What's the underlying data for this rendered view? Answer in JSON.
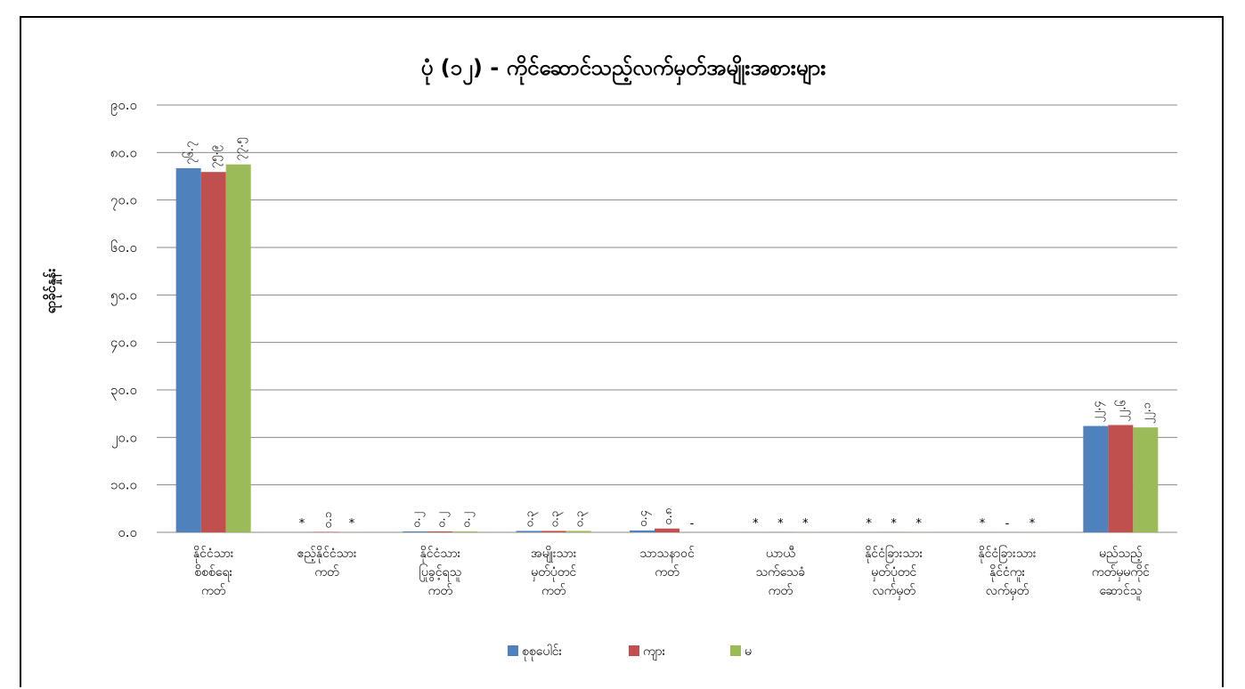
{
  "chart_data": {
    "type": "bar",
    "title": "ပုံ (၁၂) - ကိုင်ဆောင်သည့်လက်မှတ်အမျိုးအစားများ",
    "ylabel": "ရာခိုင်နှုန်း",
    "ylim": [
      0,
      90
    ],
    "yticks": [
      0,
      10,
      20,
      30,
      40,
      50,
      60,
      70,
      80,
      90
    ],
    "ytick_labels": [
      "၀.၀",
      "၁၀.၀",
      "၂၀.၀",
      "၃၀.၀",
      "၄၀.၀",
      "၅၀.၀",
      "၆၀.၀",
      "၇၀.၀",
      "၈၀.၀",
      "၉၀.၀"
    ],
    "grid": true,
    "legend_position": "bottom",
    "categories": [
      [
        "နိုင်ငံသား",
        "စိစစ်ရေး",
        "ကတ်"
      ],
      [
        "ဧည့်နိုင်ငံသား",
        "ကတ်"
      ],
      [
        "နိုင်ငံသား",
        "ပြုခွင့်ရသူ",
        "ကတ်"
      ],
      [
        "အမျိုးသား",
        "မှတ်ပုံတင်",
        "ကတ်"
      ],
      [
        "သာသနာဝင်",
        "ကတ်"
      ],
      [
        "ယာယီ",
        "သက်သေခံ",
        "ကတ်"
      ],
      [
        "နိုင်ငံခြားသား",
        "မှတ်ပုံတင်",
        "လက်မှတ်"
      ],
      [
        "နိုင်ငံခြားသား",
        "နိုင်ငံကူး",
        "လက်မှတ်"
      ],
      [
        "မည်သည့်",
        "ကတ်မှမကိုင်",
        "ဆောင်သူ"
      ]
    ],
    "series": [
      {
        "name": "စုစုပေါင်း",
        "color": "#4F81BD",
        "values": [
          76.7,
          0.03,
          0.2,
          0.3,
          0.4,
          0.03,
          0.03,
          0.03,
          22.4
        ],
        "labels": [
          "၇၆.၇",
          "*",
          "၀.၂",
          "၀.၃",
          "၀.၄",
          "*",
          "*",
          "*",
          "၂၂.၄"
        ]
      },
      {
        "name": "ကျား",
        "color": "#C0504D",
        "values": [
          75.9,
          0.1,
          0.2,
          0.3,
          0.8,
          0.03,
          0.03,
          0.0,
          22.6
        ],
        "labels": [
          "၇၅.၉",
          "၀.၁",
          "၀.၂",
          "၀.၃",
          "၀.၈",
          "*",
          "*",
          "-",
          "၂၂.၆"
        ]
      },
      {
        "name": "မ",
        "color": "#9BBB59",
        "values": [
          77.5,
          0.03,
          0.2,
          0.3,
          0.0,
          0.03,
          0.03,
          0.03,
          22.1
        ],
        "labels": [
          "၇၇.၅",
          "*",
          "၀.၂",
          "၀.၃",
          "-",
          "*",
          "*",
          "*",
          "၂၂.၁"
        ]
      }
    ]
  }
}
